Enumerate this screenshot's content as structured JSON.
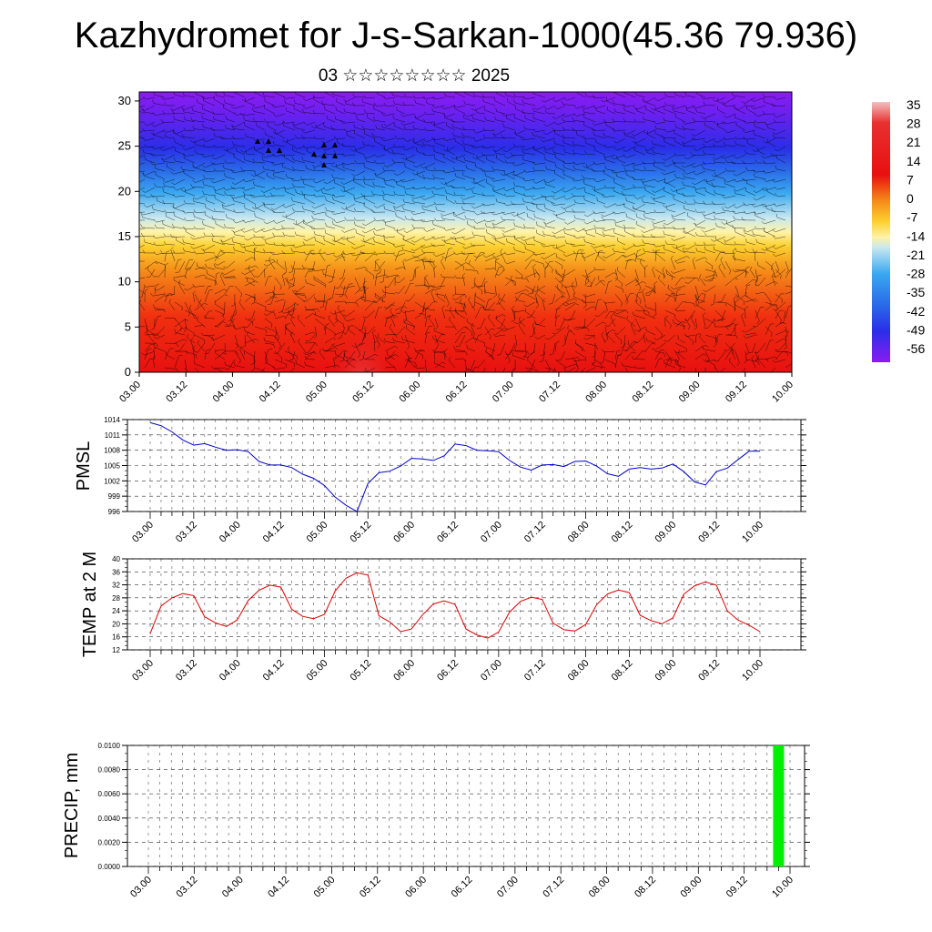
{
  "title": "Kazhydromet for J-s-Sarkan-1000(45.36 79.936)",
  "subtitle": "03 ☆☆☆☆☆☆☆☆ 2025",
  "chart_data": [
    {
      "type": "heatmap",
      "description_of_field": "temperature cross-section with wind barbs",
      "x_tick_labels": [
        "03.00",
        "03.12",
        "04.00",
        "04.12",
        "05.00",
        "05.12",
        "06.00",
        "06.12",
        "07.00",
        "07.12",
        "08.00",
        "08.12",
        "09.00",
        "09.12",
        "10.00"
      ],
      "y_tick_labels": [
        "0",
        "5",
        "10",
        "15",
        "20",
        "25",
        "30"
      ],
      "ylim": [
        0,
        31
      ],
      "colorbar_labels": [
        "35",
        "28",
        "21",
        "14",
        "7",
        "0",
        "-7",
        "-14",
        "-21",
        "-28",
        "-35",
        "-42",
        "-49",
        "-56"
      ],
      "colorbar_range": [
        -60,
        38
      ],
      "colors": [
        "#7a1cf0",
        "#3a2ef2",
        "#2a8ef2",
        "#7fd0f5",
        "#c8e8f0",
        "#fff2a0",
        "#fcd82c",
        "#f7a020",
        "#f05010",
        "#e81010",
        "#e03030",
        "#f3b0b0"
      ]
    },
    {
      "type": "line",
      "ylabel": "PMSL",
      "y_tick_labels": [
        "1014",
        "1011",
        "1008",
        "1005",
        "1002",
        "999",
        "996"
      ],
      "ylim": [
        996,
        1014
      ],
      "x_tick_labels": [
        "03.00",
        "03.12",
        "04.00",
        "04.12",
        "05.00",
        "05.12",
        "06.00",
        "06.12",
        "07.00",
        "07.12",
        "08.00",
        "08.12",
        "09.00",
        "09.12",
        "10.00"
      ],
      "color": "#0000cc",
      "x": [
        0,
        3,
        6,
        9,
        12,
        15,
        18,
        21,
        24,
        27,
        30,
        33,
        36,
        39,
        42,
        45,
        48,
        51,
        54,
        57,
        60,
        63,
        66,
        69,
        72,
        75,
        78,
        81,
        84,
        87,
        90,
        93,
        96,
        99,
        102,
        105,
        108,
        111,
        114,
        117,
        120,
        123,
        126,
        129,
        132,
        135,
        138,
        141,
        144,
        147,
        150,
        153,
        156,
        159,
        162,
        165,
        168
      ],
      "values": [
        1013.4,
        1012.8,
        1011.6,
        1010.0,
        1009.0,
        1009.3,
        1008.6,
        1008.0,
        1008.1,
        1007.7,
        1005.8,
        1005.1,
        1005.1,
        1004.6,
        1003.3,
        1002.5,
        1001.1,
        998.8,
        997.2,
        996.0,
        1001.5,
        1003.6,
        1003.9,
        1004.9,
        1006.4,
        1006.3,
        1006.0,
        1006.9,
        1009.2,
        1008.9,
        1008.0,
        1007.9,
        1007.7,
        1006.0,
        1004.7,
        1004.1,
        1005.1,
        1005.2,
        1004.8,
        1005.8,
        1005.9,
        1004.9,
        1003.4,
        1002.9,
        1004.3,
        1004.6,
        1004.3,
        1004.5,
        1005.3,
        1003.8,
        1001.8,
        1001.2,
        1003.8,
        1004.5,
        1006.2,
        1007.8,
        1007.8
      ]
    },
    {
      "type": "line",
      "ylabel": "TEMP at 2 M",
      "y_tick_labels": [
        "40",
        "36",
        "32",
        "28",
        "24",
        "20",
        "16",
        "12"
      ],
      "ylim": [
        12,
        40
      ],
      "x_tick_labels": [
        "03.00",
        "03.12",
        "04.00",
        "04.12",
        "05.00",
        "05.12",
        "06.00",
        "06.12",
        "07.00",
        "07.12",
        "08.00",
        "08.12",
        "09.00",
        "09.12",
        "10.00"
      ],
      "color": "#dd0000",
      "x": [
        0,
        3,
        6,
        9,
        12,
        15,
        18,
        21,
        24,
        27,
        30,
        33,
        36,
        39,
        42,
        45,
        48,
        51,
        54,
        57,
        60,
        63,
        66,
        69,
        72,
        75,
        78,
        81,
        84,
        87,
        90,
        93,
        96,
        99,
        102,
        105,
        108,
        111,
        114,
        117,
        120,
        123,
        126,
        129,
        132,
        135,
        138,
        141,
        144,
        147,
        150,
        153,
        156,
        159,
        162,
        165,
        168
      ],
      "values": [
        17.0,
        25.5,
        28.0,
        29.3,
        28.7,
        22.2,
        20.3,
        19.2,
        21.2,
        27.2,
        30.3,
        31.9,
        31.3,
        24.5,
        22.3,
        21.6,
        22.9,
        30.2,
        34.1,
        35.7,
        35.0,
        22.5,
        20.6,
        17.6,
        18.4,
        22.7,
        26.1,
        27.1,
        26.0,
        18.4,
        16.6,
        15.6,
        17.5,
        23.6,
        26.9,
        28.2,
        27.5,
        20.2,
        18.2,
        17.8,
        19.8,
        25.9,
        29.2,
        30.4,
        29.6,
        22.6,
        21.0,
        20.0,
        21.8,
        29.1,
        31.7,
        32.9,
        31.9,
        24.0,
        21.1,
        19.6,
        17.6
      ]
    },
    {
      "type": "bar",
      "ylabel": "PRECIP, mm",
      "y_tick_labels": [
        "0.0100",
        "0.0080",
        "0.0060",
        "0.0040",
        "0.0020",
        "0.0000"
      ],
      "ylim": [
        0,
        0.01
      ],
      "x_tick_labels": [
        "03.00",
        "03.12",
        "04.00",
        "04.12",
        "05.00",
        "05.12",
        "06.00",
        "06.12",
        "07.00",
        "07.12",
        "08.00",
        "08.12",
        "09.00",
        "09.12",
        "10.00"
      ],
      "color": "#00ee00",
      "bars": [
        {
          "x": 165,
          "value": 0.01
        }
      ]
    }
  ]
}
